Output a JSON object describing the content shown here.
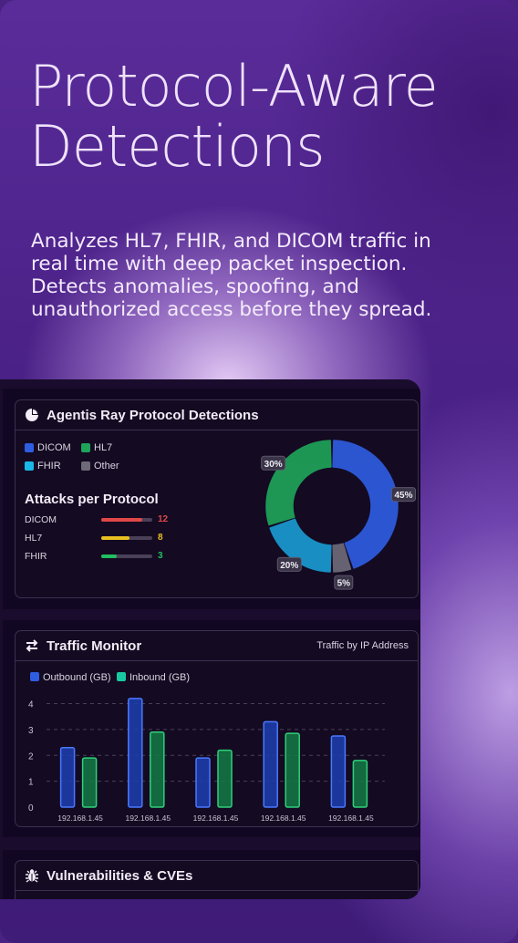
{
  "hero": {
    "title_line1": "Protocol-Aware",
    "title_line2": "Detections",
    "subtitle": "Analyzes HL7, FHIR, and DICOM traffic in real time with deep packet inspection. Detects anomalies, spoofing, and unauthorized access before they spread."
  },
  "detections": {
    "title": "Agentis Ray Protocol Detections",
    "icon": "pie-chart-icon",
    "legend": [
      {
        "label": "DICOM",
        "color": "#2f5de0"
      },
      {
        "label": "HL7",
        "color": "#1fa35a"
      },
      {
        "label": "FHIR",
        "color": "#1ab8e8"
      },
      {
        "label": "Other",
        "color": "#6e6a78"
      }
    ],
    "attacks_title": "Attacks per Protocol",
    "attacks": [
      {
        "label": "DICOM",
        "value": "12",
        "fraction": 0.8,
        "color": "#e04848"
      },
      {
        "label": "HL7",
        "value": "8",
        "fraction": 0.55,
        "color": "#e8c020"
      },
      {
        "label": "FHIR",
        "value": "3",
        "fraction": 0.3,
        "color": "#20c060"
      }
    ]
  },
  "traffic": {
    "title": "Traffic Monitor",
    "icon": "swap-arrows-icon",
    "subtitle": "Traffic by IP Address"
  },
  "vulns": {
    "title": "Vulnerabilities & CVEs",
    "icon": "bug-icon"
  },
  "chart_data": [
    {
      "type": "pie",
      "labels": [
        "DICOM",
        "Other",
        "FHIR",
        "HL7"
      ],
      "values": [
        45,
        5,
        20,
        30
      ],
      "value_labels": [
        "45%",
        "5%",
        "20%",
        "30%"
      ],
      "colors": [
        "#2f5de0",
        "#6e6a78",
        "#1a9ad0",
        "#1fa35a"
      ],
      "title": "Agentis Ray Protocol Detections"
    },
    {
      "type": "bar",
      "title": "Traffic Monitor",
      "subtitle": "Traffic by IP Address",
      "categories": [
        "192.168.1.45",
        "192.168.1.45",
        "192.168.1.45",
        "192.168.1.45",
        "192.168.1.45"
      ],
      "series": [
        {
          "name": "Outbound (GB)",
          "values": [
            2.3,
            4.2,
            1.9,
            3.3,
            2.75
          ],
          "color": "#2f5de0"
        },
        {
          "name": "Inbound (GB)",
          "values": [
            1.9,
            2.9,
            2.2,
            2.85,
            1.8
          ],
          "color": "#1fa35a"
        }
      ],
      "yticks": [
        "0",
        "1",
        "2",
        "3",
        "4"
      ],
      "ylim": [
        0,
        4.3
      ],
      "legend_colors": [
        "#2f5de0",
        "#18c8a0"
      ],
      "grid": true
    }
  ]
}
